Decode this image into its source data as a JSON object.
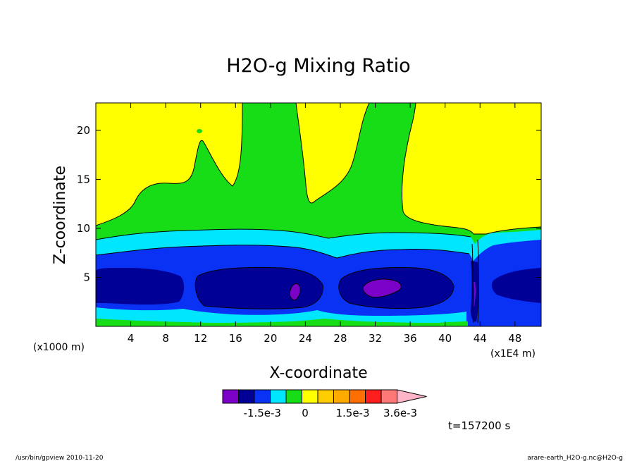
{
  "chart_data": {
    "type": "contour",
    "title": "H2O-g Mixing Ratio",
    "xlabel": "X-coordinate",
    "ylabel": "Z-coordinate",
    "x_unit": "(x1E4 m)",
    "y_unit": "(x1000 m)",
    "xlim": [
      0,
      51
    ],
    "ylim": [
      0,
      22.8
    ],
    "x_ticks": [
      "4",
      "8",
      "12",
      "16",
      "20",
      "24",
      "28",
      "32",
      "36",
      "40",
      "44",
      "48"
    ],
    "y_ticks": [
      "5",
      "10",
      "15",
      "20"
    ],
    "colorbar": {
      "colors": [
        "#7b00c8",
        "#000096",
        "#0a32f5",
        "#00e6ff",
        "#17dd17",
        "#ffff00",
        "#ffcd00",
        "#ffaa00",
        "#ff6e00",
        "#ff1e1e",
        "#ff7878",
        "#ffb4c8"
      ],
      "tick_labels": [
        "-1.5e-3",
        "0",
        "1.5e-3",
        "3.6e-3"
      ]
    },
    "time_label": "t=157200 s"
  },
  "footer": {
    "left": "/usr/bin/gpview   2010-11-20",
    "right": "arare-earth_H2O-g.nc@H2O-g"
  }
}
